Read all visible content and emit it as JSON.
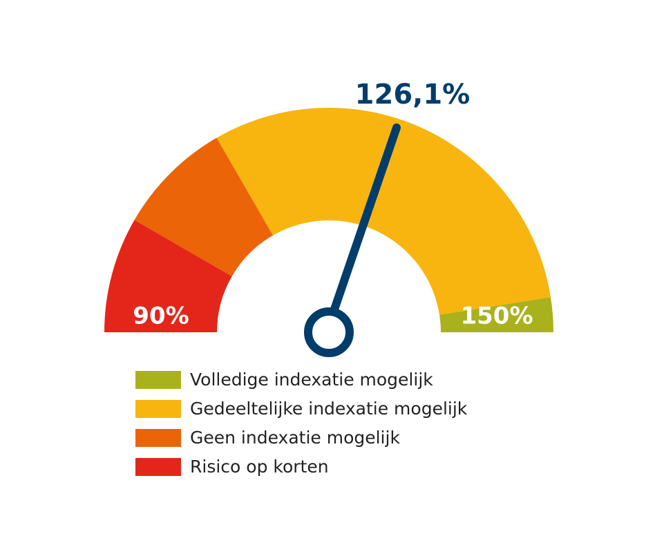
{
  "chart_data": {
    "type": "gauge",
    "value": 126.1,
    "value_label": "126,1%",
    "needle_color": "#003d6b",
    "ylim": [
      90,
      150
    ],
    "yticks": [
      {
        "value": 90,
        "label": "90%"
      },
      {
        "value": 150,
        "label": "150%"
      }
    ],
    "series": [
      {
        "name": "Volledige indexatie mogelijk",
        "color": "#a9b21c",
        "values": [
          147,
          150
        ]
      },
      {
        "name": "Gedeeltelijke indexatie mogelijk",
        "color": "#f8b50f",
        "values": [
          110,
          147
        ]
      },
      {
        "name": "Geen indexatie mogelijk",
        "color": "#ec6408",
        "values": [
          100,
          110
        ]
      },
      {
        "name": "Risico op korten",
        "color": "#e32619",
        "values": [
          90,
          100
        ]
      }
    ]
  }
}
